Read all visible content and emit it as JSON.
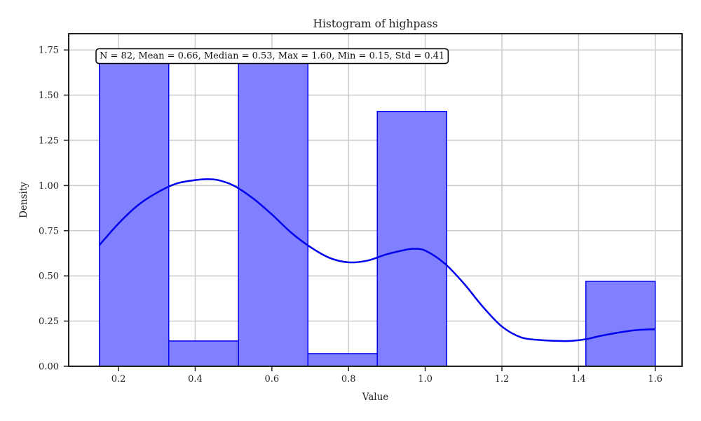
{
  "chart_data": {
    "type": "bar",
    "title": "Histogram of highpass",
    "xlabel": "Value",
    "ylabel": "Density",
    "xlim": [
      0.07,
      1.67
    ],
    "ylim": [
      0,
      1.84
    ],
    "xticks": [
      0.2,
      0.4,
      0.6,
      0.8,
      1.0,
      1.2,
      1.4,
      1.6
    ],
    "xtick_labels": [
      "0.2",
      "0.4",
      "0.6",
      "0.8",
      "1.0",
      "1.2",
      "1.4",
      "1.6"
    ],
    "yticks": [
      0.0,
      0.25,
      0.5,
      0.75,
      1.0,
      1.25,
      1.5,
      1.75
    ],
    "ytick_labels": [
      "0.00",
      "0.25",
      "0.50",
      "0.75",
      "1.00",
      "1.25",
      "1.50",
      "1.75"
    ],
    "grid": true,
    "bins": [
      {
        "x0": 0.15,
        "x1": 0.331,
        "density": 1.75
      },
      {
        "x0": 0.331,
        "x1": 0.513,
        "density": 0.14
      },
      {
        "x0": 0.513,
        "x1": 0.694,
        "density": 1.75
      },
      {
        "x0": 0.694,
        "x1": 0.875,
        "density": 0.07
      },
      {
        "x0": 0.875,
        "x1": 1.056,
        "density": 1.41
      },
      {
        "x0": 1.056,
        "x1": 1.238,
        "density": 0.0
      },
      {
        "x0": 1.238,
        "x1": 1.419,
        "density": 0.0
      },
      {
        "x0": 1.419,
        "x1": 1.6,
        "density": 0.47
      }
    ],
    "kde": {
      "x": [
        0.15,
        0.2,
        0.25,
        0.3,
        0.35,
        0.4,
        0.43,
        0.46,
        0.5,
        0.55,
        0.6,
        0.65,
        0.7,
        0.75,
        0.8,
        0.85,
        0.9,
        0.95,
        0.97,
        1.0,
        1.05,
        1.1,
        1.15,
        1.2,
        1.25,
        1.3,
        1.35,
        1.38,
        1.42,
        1.45,
        1.5,
        1.55,
        1.6
      ],
      "y": [
        0.67,
        0.79,
        0.89,
        0.96,
        1.01,
        1.03,
        1.035,
        1.03,
        1.0,
        0.93,
        0.84,
        0.74,
        0.66,
        0.6,
        0.575,
        0.585,
        0.62,
        0.645,
        0.65,
        0.64,
        0.57,
        0.46,
        0.33,
        0.22,
        0.16,
        0.145,
        0.14,
        0.14,
        0.15,
        0.165,
        0.185,
        0.2,
        0.205
      ]
    },
    "colors": {
      "bar_fill": "#8080ff",
      "bar_edge": "#0000ee",
      "kde_line": "#0000ee",
      "grid": "#cccccc",
      "axis": "#222222"
    },
    "annotation": "N = 82, Mean = 0.66, Median = 0.53, Max = 1.60, Min = 0.15, Std = 0.41"
  }
}
